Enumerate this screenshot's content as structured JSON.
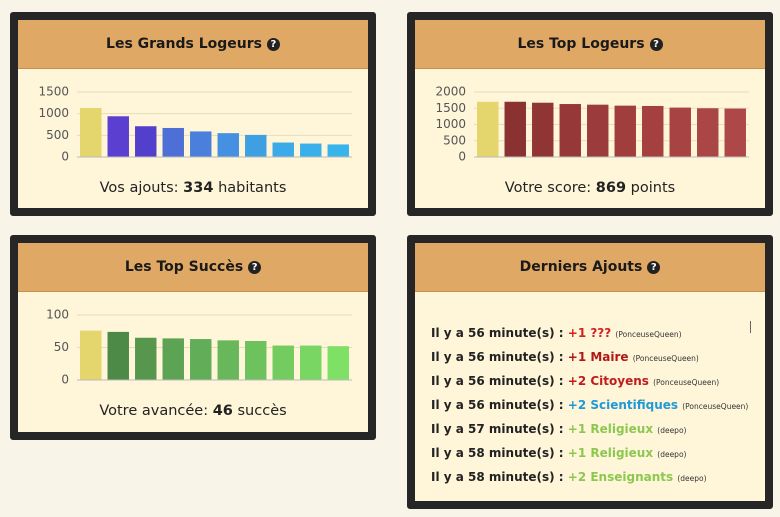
{
  "chart_data": [
    {
      "type": "bar",
      "title": "Les Grands Logeurs",
      "values": [
        1130,
        940,
        710,
        670,
        590,
        550,
        510,
        334,
        310,
        290
      ],
      "colors": [
        "#e4d66c",
        "#5a3fd0",
        "#5240cc",
        "#4e6fd6",
        "#4a80dc",
        "#4590e0",
        "#3ea0e2",
        "#3aaae8",
        "#3ab0ea",
        "#38b4ec"
      ],
      "ylim": [
        0,
        1500
      ],
      "yticks": [
        0,
        500,
        1000,
        1500
      ],
      "grid": true
    },
    {
      "type": "bar",
      "title": "Les Top Logeurs",
      "values": [
        1700,
        1700,
        1670,
        1630,
        1610,
        1580,
        1570,
        1520,
        1500,
        1490
      ],
      "colors": [
        "#e4d66c",
        "#8a3232",
        "#913434",
        "#973838",
        "#9c3b3b",
        "#a03e3e",
        "#a44040",
        "#a84343",
        "#ab4646",
        "#ae4848"
      ],
      "ylim": [
        0,
        2000
      ],
      "yticks": [
        0,
        500,
        1000,
        1500,
        2000
      ],
      "grid": true
    },
    {
      "type": "bar",
      "title": "Les Top Succès",
      "values": [
        76,
        74,
        65,
        64,
        63,
        61,
        60,
        53,
        53,
        52
      ],
      "colors": [
        "#e4d66c",
        "#4e8a47",
        "#56974d",
        "#5ca353",
        "#62ad57",
        "#68b85b",
        "#6ec25e",
        "#74cc60",
        "#79d662",
        "#7ee064"
      ],
      "ylim": [
        0,
        100
      ],
      "yticks": [
        0,
        50,
        100
      ],
      "grid": true
    }
  ],
  "summaries": [
    {
      "prefix": "Vos ajouts:",
      "value": 334,
      "suffix": "habitants"
    },
    {
      "prefix": "Votre score:",
      "value": 869,
      "suffix": "points"
    },
    {
      "prefix": "Votre avancée:",
      "value": 46,
      "suffix": "succès"
    }
  ],
  "feed": {
    "title": "Derniers Ajouts",
    "items": [
      {
        "time": "Il y a 56 minute(s) :",
        "change": "+1 ???",
        "color": "#d42020",
        "user": "(PonceuseQueen)"
      },
      {
        "time": "Il y a 56 minute(s) :",
        "change": "+1 Maire",
        "color": "#b01818",
        "user": "(PonceuseQueen)"
      },
      {
        "time": "Il y a 56 minute(s) :",
        "change": "+2 Citoyens",
        "color": "#c01c1c",
        "user": "(PonceuseQueen)"
      },
      {
        "time": "Il y a 56 minute(s) :",
        "change": "+2 Scientifiques",
        "color": "#1e9ad8",
        "user": "(PonceuseQueen)"
      },
      {
        "time": "Il y a 57 minute(s) :",
        "change": "+1 Religieux",
        "color": "#8cc850",
        "user": "(deepo)"
      },
      {
        "time": "Il y a 58 minute(s) :",
        "change": "+1 Religieux",
        "color": "#8cc850",
        "user": "(deepo)"
      },
      {
        "time": "Il y a 58 minute(s) :",
        "change": "+2 Enseignants",
        "color": "#8cc850",
        "user": "(deepo)"
      }
    ]
  }
}
